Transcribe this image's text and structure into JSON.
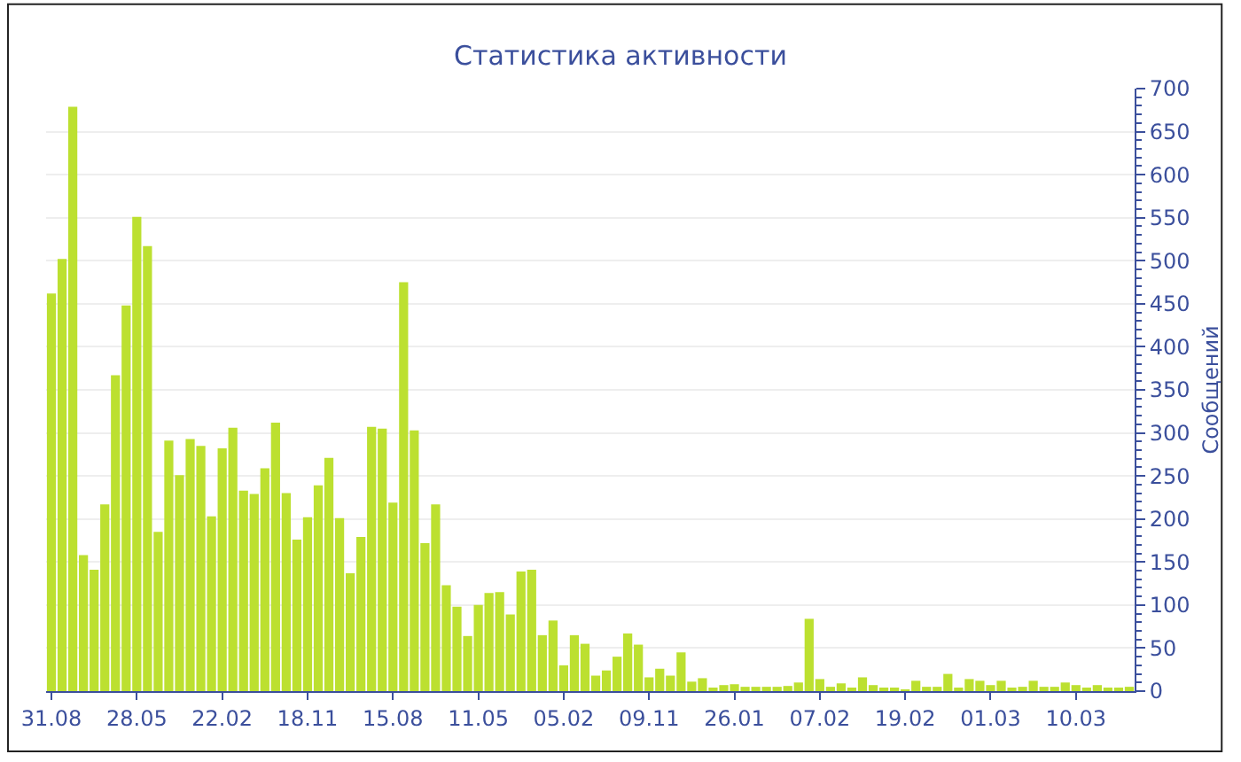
{
  "chart_data": {
    "type": "bar",
    "title": "Статистика активности",
    "ylabel": "Сообщений",
    "categories": [
      "31.08",
      null,
      null,
      null,
      null,
      null,
      null,
      null,
      "28.05",
      null,
      null,
      null,
      null,
      null,
      null,
      null,
      "22.02",
      null,
      null,
      null,
      null,
      null,
      null,
      null,
      "18.11",
      null,
      null,
      null,
      null,
      null,
      null,
      null,
      "15.08",
      null,
      null,
      null,
      null,
      null,
      null,
      null,
      "11.05",
      null,
      null,
      null,
      null,
      null,
      null,
      null,
      "05.02",
      null,
      null,
      null,
      null,
      null,
      null,
      null,
      "09.11",
      null,
      null,
      null,
      null,
      null,
      null,
      null,
      "26.01",
      null,
      null,
      null,
      null,
      null,
      null,
      null,
      "07.02",
      null,
      null,
      null,
      null,
      null,
      null,
      null,
      "19.02",
      null,
      null,
      null,
      null,
      null,
      null,
      null,
      "01.03",
      null,
      null,
      null,
      null,
      null,
      null,
      null,
      "10.03",
      null,
      null,
      null,
      null,
      null
    ],
    "series": [
      {
        "color": "#bce030",
        "values": [
          462,
          502,
          679,
          158,
          141,
          217,
          367,
          448,
          551,
          517,
          185,
          291,
          251,
          293,
          285,
          203,
          282,
          306,
          233,
          229,
          259,
          312,
          230,
          176,
          202,
          239,
          271,
          201,
          137,
          179,
          307,
          305,
          219,
          475,
          303,
          172,
          217,
          123,
          98,
          64,
          100,
          114,
          115,
          89,
          139,
          141,
          65,
          82,
          30,
          65,
          55,
          18,
          24,
          40,
          67,
          54,
          16,
          26,
          18,
          45,
          11,
          15,
          4,
          7,
          8,
          5,
          5,
          5,
          5,
          6,
          10,
          84,
          14,
          5,
          9,
          3,
          16,
          7,
          3,
          3,
          2,
          12,
          5,
          5,
          20,
          3,
          14,
          12,
          7,
          12,
          3,
          5,
          12,
          5,
          5,
          10,
          7,
          3,
          7,
          4,
          3,
          5
        ]
      }
    ],
    "ylim": [
      0,
      700
    ],
    "yticks": [
      0,
      50,
      100,
      150,
      200,
      250,
      300,
      350,
      400,
      450,
      500,
      550,
      600,
      650,
      700
    ],
    "grid": "y"
  }
}
